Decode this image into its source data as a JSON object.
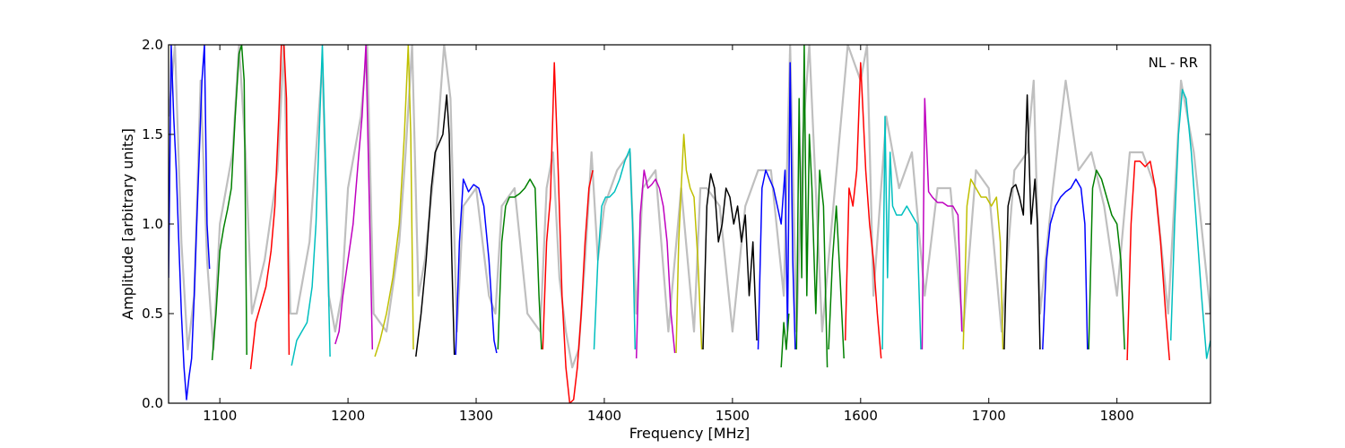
{
  "chart_data": {
    "type": "line",
    "title": "",
    "xlabel": "Frequency [MHz]",
    "ylabel": "Amplitude [arbitrary units]",
    "xlim": [
      1060,
      1873
    ],
    "ylim": [
      0.0,
      2.0
    ],
    "xticks": [
      1100,
      1200,
      1300,
      1400,
      1500,
      1600,
      1700,
      1800
    ],
    "xtick_labels": [
      "1100",
      "1200",
      "1300",
      "1400",
      "1500",
      "1600",
      "1700",
      "1800"
    ],
    "yticks": [
      0.0,
      0.5,
      1.0,
      1.5,
      2.0
    ],
    "ytick_labels": [
      "0.0",
      "0.5",
      "1.0",
      "1.5",
      "2.0"
    ],
    "grid": false,
    "annotation": "NL - RR",
    "background_trace": {
      "color": "#bfbfbf",
      "x": [
        1060,
        1065,
        1070,
        1075,
        1080,
        1085,
        1090,
        1095,
        1100,
        1110,
        1115,
        1120,
        1125,
        1135,
        1145,
        1150,
        1155,
        1160,
        1170,
        1175,
        1180,
        1185,
        1190,
        1195,
        1200,
        1210,
        1215,
        1220,
        1230,
        1240,
        1245,
        1250,
        1255,
        1260,
        1270,
        1275,
        1280,
        1285,
        1290,
        1300,
        1310,
        1315,
        1320,
        1330,
        1340,
        1350,
        1355,
        1360,
        1365,
        1370,
        1375,
        1380,
        1385,
        1390,
        1395,
        1400,
        1410,
        1420,
        1425,
        1430,
        1440,
        1450,
        1460,
        1470,
        1475,
        1480,
        1490,
        1500,
        1510,
        1520,
        1530,
        1540,
        1545,
        1550,
        1555,
        1560,
        1570,
        1580,
        1590,
        1600,
        1605,
        1610,
        1615,
        1620,
        1630,
        1640,
        1650,
        1660,
        1670,
        1680,
        1690,
        1700,
        1710,
        1720,
        1730,
        1735,
        1740,
        1750,
        1760,
        1770,
        1780,
        1790,
        1800,
        1810,
        1820,
        1830,
        1840,
        1850,
        1860,
        1873
      ],
      "y": [
        1.6,
        2.0,
        0.9,
        0.3,
        0.6,
        1.8,
        0.8,
        0.3,
        1.0,
        1.4,
        2.0,
        1.4,
        0.5,
        0.8,
        1.3,
        2.0,
        0.5,
        0.5,
        0.9,
        1.4,
        1.9,
        0.6,
        0.4,
        0.6,
        1.2,
        1.6,
        2.0,
        0.5,
        0.4,
        0.9,
        1.4,
        2.0,
        0.6,
        0.8,
        1.5,
        2.0,
        1.7,
        0.4,
        1.1,
        1.2,
        0.6,
        0.5,
        1.1,
        1.2,
        0.5,
        0.4,
        1.2,
        1.4,
        0.7,
        0.4,
        0.2,
        0.3,
        0.8,
        1.4,
        0.8,
        1.1,
        1.3,
        1.4,
        0.5,
        1.2,
        1.3,
        0.4,
        1.2,
        0.4,
        1.2,
        1.2,
        1.1,
        0.4,
        1.1,
        1.3,
        1.3,
        0.6,
        2.0,
        0.4,
        1.5,
        2.0,
        0.4,
        1.2,
        2.0,
        1.8,
        2.0,
        0.6,
        1.1,
        1.6,
        1.2,
        1.4,
        0.6,
        1.2,
        1.2,
        0.4,
        1.3,
        1.2,
        0.4,
        1.3,
        1.4,
        1.8,
        0.5,
        1.2,
        1.8,
        1.3,
        1.4,
        1.1,
        0.6,
        1.4,
        1.4,
        1.2,
        0.5,
        1.8,
        1.4,
        0.5
      ]
    },
    "series": [
      {
        "color": "#0000ff",
        "x": [
          1060,
          1062,
          1064,
          1066,
          1068,
          1070,
          1072,
          1074,
          1076,
          1078,
          1080,
          1082,
          1084,
          1086,
          1088,
          1090,
          1092
        ],
        "y": [
          0.7,
          2.0,
          1.6,
          1.3,
          0.9,
          0.5,
          0.2,
          0.02,
          0.15,
          0.25,
          0.6,
          1.0,
          1.4,
          1.8,
          2.0,
          1.0,
          0.75
        ]
      },
      {
        "color": "#008000",
        "x": [
          1094,
          1097,
          1100,
          1103,
          1106,
          1109,
          1112,
          1115,
          1117,
          1119,
          1121
        ],
        "y": [
          0.24,
          0.5,
          0.85,
          0.98,
          1.08,
          1.2,
          1.6,
          1.95,
          2.0,
          1.8,
          0.27
        ]
      },
      {
        "color": "#ff0000",
        "x": [
          1124,
          1128,
          1132,
          1136,
          1140,
          1143,
          1146,
          1148,
          1150,
          1152,
          1154
        ],
        "y": [
          0.19,
          0.45,
          0.55,
          0.65,
          0.85,
          1.1,
          1.6,
          2.0,
          2.0,
          1.7,
          0.27
        ]
      },
      {
        "color": "#00bfbf",
        "x": [
          1156,
          1160,
          1164,
          1168,
          1172,
          1175,
          1178,
          1180,
          1183,
          1186
        ],
        "y": [
          0.21,
          0.35,
          0.4,
          0.45,
          0.65,
          1.0,
          1.6,
          2.0,
          1.2,
          0.26
        ]
      },
      {
        "color": "#bf00bf",
        "x": [
          1190,
          1193,
          1196,
          1200,
          1204,
          1208,
          1211,
          1214,
          1217,
          1219
        ],
        "y": [
          0.33,
          0.4,
          0.6,
          0.8,
          1.0,
          1.35,
          1.6,
          2.0,
          1.0,
          0.3
        ]
      },
      {
        "color": "#bfbf00",
        "x": [
          1221,
          1225,
          1230,
          1235,
          1240,
          1244,
          1247,
          1249,
          1251
        ],
        "y": [
          0.26,
          0.35,
          0.5,
          0.7,
          1.0,
          1.5,
          2.0,
          1.5,
          0.3
        ]
      },
      {
        "color": "#000000",
        "x": [
          1253,
          1257,
          1261,
          1265,
          1268,
          1271,
          1274,
          1277,
          1279,
          1281,
          1283
        ],
        "y": [
          0.26,
          0.5,
          0.8,
          1.2,
          1.4,
          1.45,
          1.5,
          1.72,
          1.5,
          0.8,
          0.27
        ]
      },
      {
        "color": "#0000ff",
        "x": [
          1284,
          1287,
          1290,
          1294,
          1298,
          1302,
          1306,
          1310,
          1314,
          1316
        ],
        "y": [
          0.27,
          0.9,
          1.25,
          1.18,
          1.22,
          1.2,
          1.1,
          0.8,
          0.35,
          0.28
        ]
      },
      {
        "color": "#008000",
        "x": [
          1317,
          1320,
          1323,
          1326,
          1330,
          1334,
          1338,
          1342,
          1346,
          1349,
          1351
        ],
        "y": [
          0.3,
          0.9,
          1.1,
          1.15,
          1.15,
          1.17,
          1.2,
          1.25,
          1.2,
          0.6,
          0.3
        ]
      },
      {
        "color": "#ff0000",
        "x": [
          1352,
          1355,
          1358,
          1361,
          1364,
          1367,
          1370,
          1373,
          1376,
          1379,
          1382,
          1385,
          1388,
          1391
        ],
        "y": [
          0.3,
          0.9,
          1.15,
          1.9,
          1.3,
          0.6,
          0.2,
          0.0,
          0.02,
          0.2,
          0.5,
          0.9,
          1.2,
          1.3
        ]
      },
      {
        "color": "#00bfbf",
        "x": [
          1392,
          1395,
          1398,
          1401,
          1404,
          1408,
          1412,
          1416,
          1420,
          1422,
          1424
        ],
        "y": [
          0.3,
          0.8,
          1.1,
          1.15,
          1.15,
          1.18,
          1.25,
          1.35,
          1.42,
          1.0,
          0.3
        ]
      },
      {
        "color": "#bf00bf",
        "x": [
          1425,
          1428,
          1431,
          1434,
          1437,
          1440,
          1443,
          1446,
          1449,
          1452,
          1455
        ],
        "y": [
          0.25,
          1.05,
          1.3,
          1.2,
          1.22,
          1.25,
          1.2,
          1.1,
          0.9,
          0.5,
          0.28
        ]
      },
      {
        "color": "#bfbf00",
        "x": [
          1456,
          1458,
          1460,
          1462,
          1464,
          1467,
          1470,
          1473,
          1476
        ],
        "y": [
          0.28,
          0.9,
          1.2,
          1.5,
          1.3,
          1.2,
          1.15,
          0.8,
          0.3
        ]
      },
      {
        "color": "#000000",
        "x": [
          1477,
          1480,
          1483,
          1486,
          1489,
          1492,
          1495,
          1498,
          1501,
          1504,
          1507,
          1510,
          1513,
          1516,
          1519
        ],
        "y": [
          0.3,
          1.1,
          1.28,
          1.2,
          0.9,
          1.0,
          1.2,
          1.15,
          1.0,
          1.1,
          0.9,
          1.05,
          0.6,
          0.9,
          0.35
        ]
      },
      {
        "color": "#0000ff",
        "x": [
          1520,
          1523,
          1526,
          1529,
          1532,
          1535,
          1538,
          1541,
          1543,
          1545,
          1547,
          1549
        ],
        "y": [
          0.3,
          1.2,
          1.3,
          1.25,
          1.2,
          1.1,
          1.0,
          1.3,
          0.4,
          1.9,
          0.8,
          0.3
        ]
      },
      {
        "color": "#008000",
        "x": [
          1550,
          1552,
          1554,
          1556,
          1558,
          1560,
          1562,
          1565,
          1568,
          1571,
          1574
        ],
        "y": [
          0.3,
          1.7,
          0.7,
          2.0,
          0.6,
          1.5,
          1.2,
          0.5,
          1.3,
          1.1,
          0.2
        ]
      },
      {
        "color": "#008000",
        "x": [
          1538,
          1540,
          1542,
          1544
        ],
        "y": [
          0.2,
          0.45,
          0.3,
          0.5
        ]
      },
      {
        "color": "#008000",
        "x": [
          1575,
          1578,
          1581,
          1584,
          1587
        ],
        "y": [
          0.3,
          0.8,
          1.1,
          0.7,
          0.25
        ]
      },
      {
        "color": "#ff0000",
        "x": [
          1588,
          1591,
          1594,
          1597,
          1600,
          1602,
          1604,
          1607,
          1610,
          1613,
          1616
        ],
        "y": [
          0.35,
          1.2,
          1.1,
          1.3,
          1.9,
          1.6,
          1.3,
          1.0,
          0.8,
          0.5,
          0.25
        ]
      },
      {
        "color": "#00bfbf",
        "x": [
          1617,
          1619,
          1621,
          1623,
          1625,
          1628,
          1632,
          1636,
          1640,
          1644,
          1647
        ],
        "y": [
          0.3,
          1.6,
          0.7,
          1.4,
          1.1,
          1.05,
          1.05,
          1.1,
          1.05,
          1.0,
          0.3
        ]
      },
      {
        "color": "#bf00bf",
        "x": [
          1648,
          1650,
          1653,
          1656,
          1660,
          1664,
          1668,
          1672,
          1676,
          1679
        ],
        "y": [
          0.3,
          1.7,
          1.18,
          1.15,
          1.12,
          1.12,
          1.1,
          1.1,
          1.05,
          0.4
        ]
      },
      {
        "color": "#bfbf00",
        "x": [
          1680,
          1683,
          1686,
          1690,
          1694,
          1698,
          1702,
          1706,
          1709,
          1711
        ],
        "y": [
          0.3,
          1.1,
          1.25,
          1.2,
          1.15,
          1.15,
          1.1,
          1.15,
          0.9,
          0.3
        ]
      },
      {
        "color": "#000000",
        "x": [
          1712,
          1715,
          1718,
          1721,
          1724,
          1727,
          1730,
          1733,
          1736,
          1738,
          1740
        ],
        "y": [
          0.3,
          1.1,
          1.2,
          1.22,
          1.15,
          1.05,
          1.72,
          1.0,
          1.25,
          1.0,
          0.3
        ]
      },
      {
        "color": "#0000ff",
        "x": [
          1742,
          1745,
          1748,
          1752,
          1756,
          1760,
          1764,
          1768,
          1772,
          1775,
          1777
        ],
        "y": [
          0.3,
          0.8,
          1.0,
          1.1,
          1.15,
          1.18,
          1.2,
          1.25,
          1.2,
          1.0,
          0.3
        ]
      },
      {
        "color": "#008000",
        "x": [
          1778,
          1781,
          1784,
          1788,
          1792,
          1796,
          1800,
          1803,
          1806
        ],
        "y": [
          0.3,
          1.2,
          1.3,
          1.25,
          1.15,
          1.05,
          1.0,
          0.8,
          0.3
        ]
      },
      {
        "color": "#ff0000",
        "x": [
          1808,
          1811,
          1814,
          1818,
          1822,
          1826,
          1830,
          1834,
          1838,
          1841
        ],
        "y": [
          0.24,
          1.0,
          1.35,
          1.35,
          1.32,
          1.35,
          1.2,
          0.9,
          0.5,
          0.24
        ]
      },
      {
        "color": "#00bfbf",
        "x": [
          1842,
          1845,
          1848,
          1851,
          1854,
          1858,
          1862,
          1866,
          1870,
          1873
        ],
        "y": [
          0.35,
          1.0,
          1.5,
          1.75,
          1.7,
          1.4,
          1.0,
          0.6,
          0.25,
          0.35
        ]
      }
    ]
  }
}
